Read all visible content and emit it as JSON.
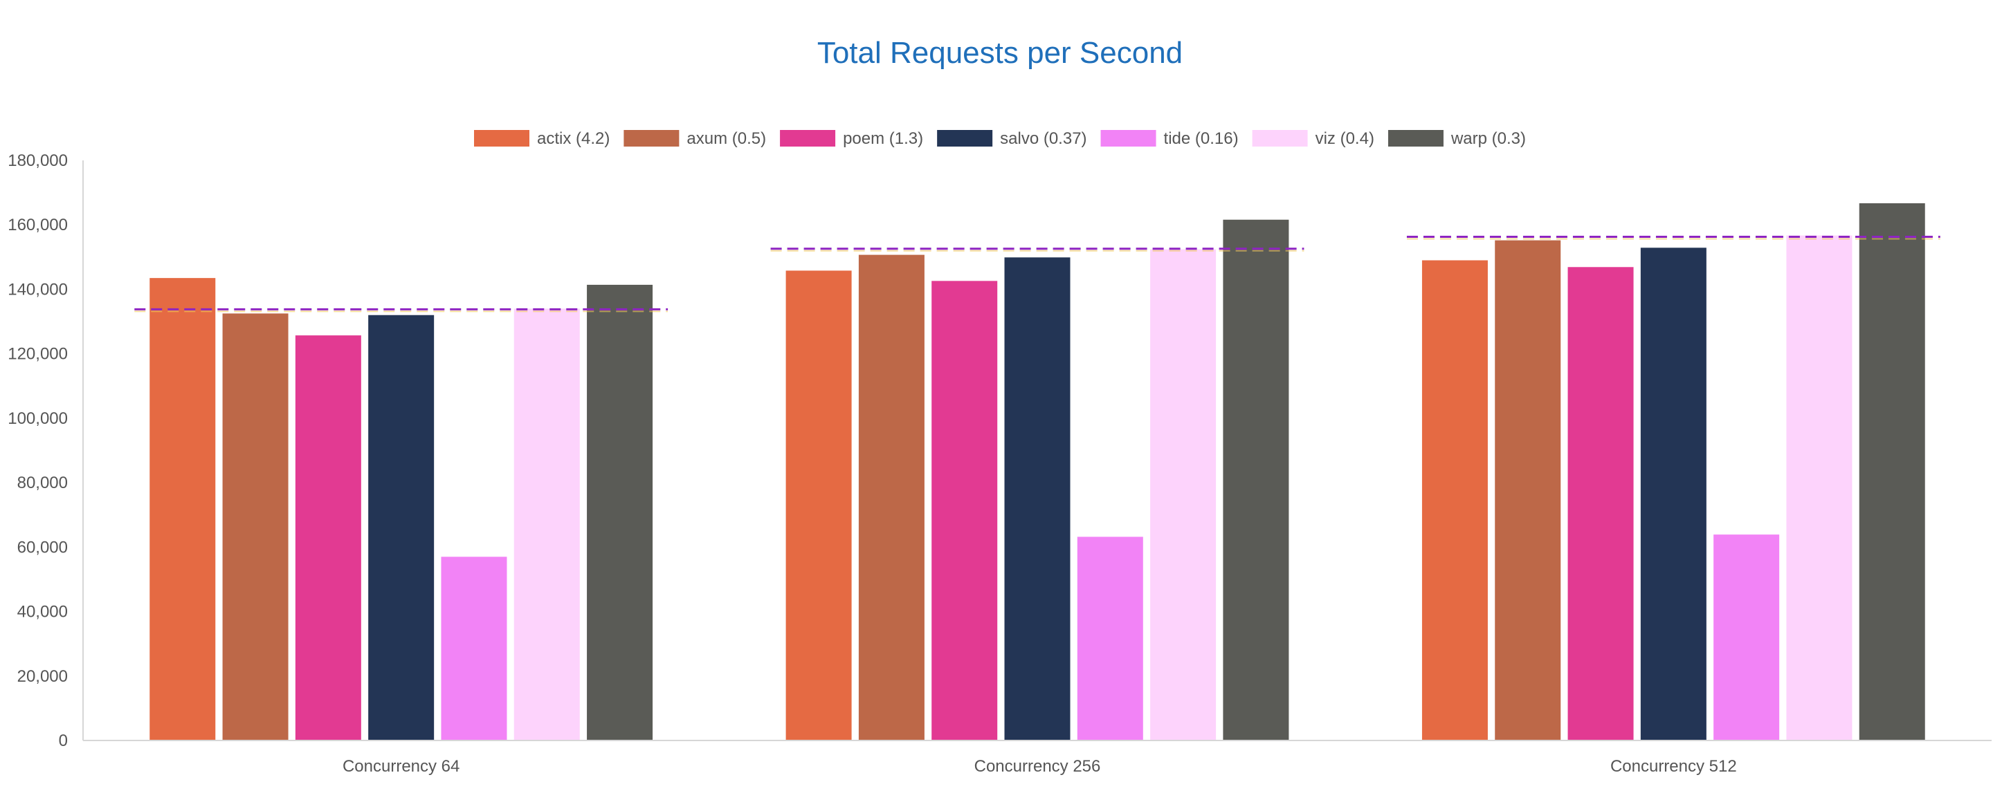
{
  "chart_data": {
    "type": "bar",
    "title": "Total Requests per Second",
    "xlabel": "",
    "ylabel": "",
    "ylim": [
      0,
      180000
    ],
    "yticks": [
      0,
      20000,
      40000,
      60000,
      80000,
      100000,
      120000,
      140000,
      160000,
      180000
    ],
    "ytick_labels": [
      "0",
      "20,000",
      "40,000",
      "60,000",
      "80,000",
      "100,000",
      "120,000",
      "140,000",
      "160,000",
      "180,000"
    ],
    "categories": [
      "Concurrency 64",
      "Concurrency 256",
      "Concurrency 512"
    ],
    "series": [
      {
        "name": "actix (4.2)",
        "color": "#e56a43",
        "values": [
          143500,
          145800,
          149000
        ]
      },
      {
        "name": "axum (0.5)",
        "color": "#bd6848",
        "values": [
          132500,
          150700,
          155200
        ]
      },
      {
        "name": "poem (1.3)",
        "color": "#e23a92",
        "values": [
          125700,
          142600,
          146900
        ]
      },
      {
        "name": "salvo (0.37)",
        "color": "#233555",
        "values": [
          132000,
          149900,
          152900
        ]
      },
      {
        "name": "tide (0.16)",
        "color": "#f283f6",
        "values": [
          57000,
          63200,
          63900
        ]
      },
      {
        "name": "viz (0.4)",
        "color": "#fdd3fc",
        "values": [
          134000,
          152400,
          156700
        ]
      },
      {
        "name": "warp (0.3)",
        "color": "#5a5b56",
        "values": [
          141400,
          161600,
          166700
        ]
      }
    ],
    "average_lines": {
      "color": "#8e24c2",
      "style": "dashed",
      "values": [
        133800,
        152600,
        156300
      ]
    },
    "grid": false,
    "legend_position": "top-center"
  }
}
